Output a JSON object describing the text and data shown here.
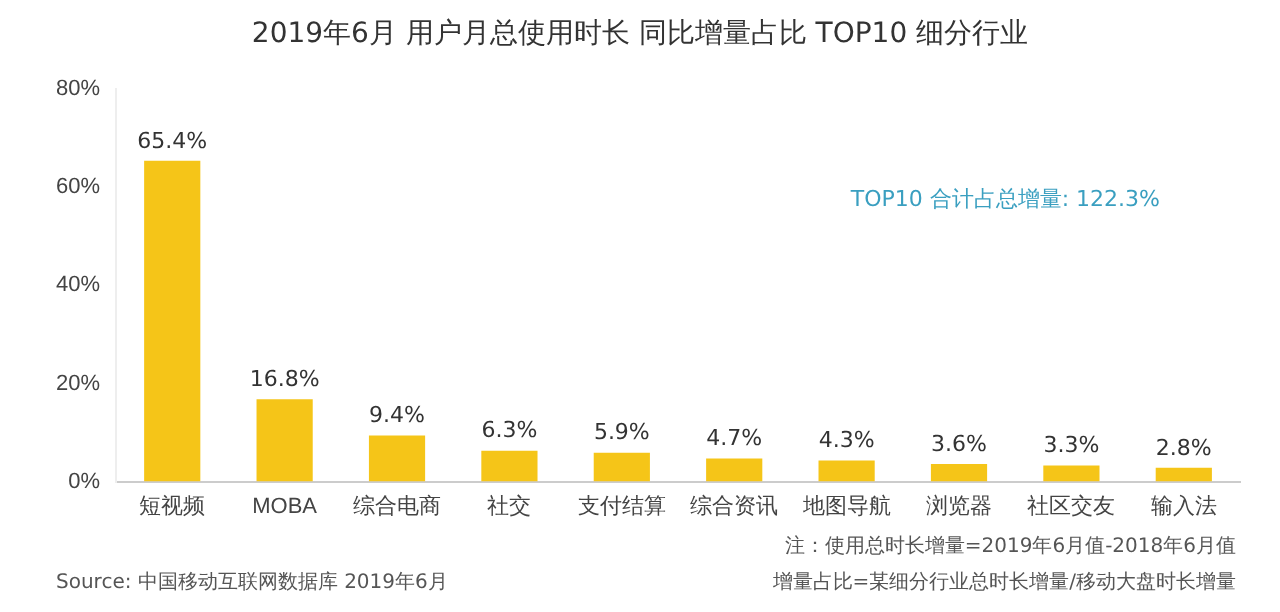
{
  "chart_data": {
    "type": "bar",
    "title": "2019年6月 用户月总使用时长 同比增量占比 TOP10 细分行业",
    "categories": [
      "短视频",
      "MOBA",
      "综合电商",
      "社交",
      "支付结算",
      "综合资讯",
      "地图导航",
      "浏览器",
      "社区交友",
      "输入法"
    ],
    "values": [
      65.4,
      16.8,
      9.4,
      6.3,
      5.9,
      4.7,
      4.3,
      3.6,
      3.3,
      2.8
    ],
    "value_labels": [
      "65.4%",
      "16.8%",
      "9.4%",
      "6.3%",
      "5.9%",
      "4.7%",
      "4.3%",
      "3.6%",
      "3.3%",
      "2.8%"
    ],
    "color": "#f5c518",
    "ylim": [
      0,
      80
    ],
    "yticks": [
      {
        "value": 0,
        "label": "0%"
      },
      {
        "value": 20,
        "label": "20%"
      },
      {
        "value": 40,
        "label": "40%"
      },
      {
        "value": 60,
        "label": "60%"
      },
      {
        "value": 80,
        "label": "80%"
      }
    ],
    "grid": false,
    "annotations": [
      "TOP10 合计占总增量: 122.3%",
      "注：使用总时长增量=2019年6月值-2018年6月值",
      "增量占比=某细分行业总时长增量/移动大盘时长增量",
      "Source: 中国移动互联网数据库 2019年6月"
    ]
  }
}
